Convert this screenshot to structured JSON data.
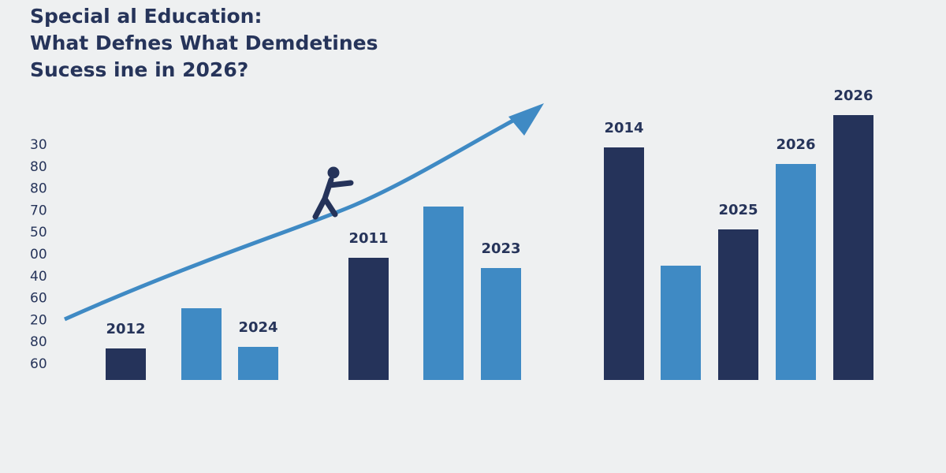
{
  "chart_data": {
    "type": "bar",
    "title": [
      "Special al Education:",
      "What Defnes What Demdetines",
      "Sucess ine in 2026?"
    ],
    "axis_texts": [
      "30",
      "80",
      "80",
      "70",
      "50",
      "00",
      "40",
      "60",
      "20",
      "80",
      "60"
    ],
    "categories": [
      "2012",
      null,
      "2024",
      "2011",
      null,
      "2023",
      "2014",
      null,
      "2025",
      "2026",
      "2026"
    ],
    "values": [
      40,
      91,
      42,
      155,
      220,
      142,
      295,
      145,
      191,
      274,
      336
    ],
    "colors": [
      "#25335a",
      "#3f8ac4",
      "#3f8ac4",
      "#25335a",
      "#3f8ac4",
      "#3f8ac4",
      "#25335a",
      "#3f8ac4",
      "#25335a",
      "#3f8ac4",
      "#25335a"
    ],
    "ylim": [
      0,
      340
    ]
  }
}
